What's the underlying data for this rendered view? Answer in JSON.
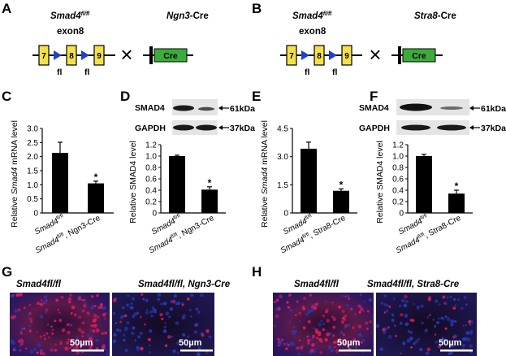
{
  "panel_labels": [
    "A",
    "B",
    "C",
    "D",
    "E",
    "F",
    "G",
    "H"
  ],
  "schematics": {
    "A": {
      "allele_main": "Smad4",
      "allele_sup": "fl/fl",
      "exon_label": "exon8",
      "exons": [
        "7",
        "8",
        "9"
      ],
      "loxp": [
        "fl",
        "fl"
      ],
      "cross": "×",
      "cre_gene": "Ngn3",
      "cre_suffix": "-Cre",
      "cre_box": "Cre"
    },
    "B": {
      "allele_main": "Smad4",
      "allele_sup": "fl/fl",
      "exon_label": "exon8",
      "exons": [
        "7",
        "8",
        "9"
      ],
      "loxp": [
        "fl",
        "fl"
      ],
      "cross": "×",
      "cre_gene": "Stra8",
      "cre_suffix": "-Cre",
      "cre_box": "Cre"
    }
  },
  "western": {
    "D": {
      "bands": [
        {
          "label": "SMAD4",
          "size": "61kDa"
        },
        {
          "label": "GAPDH",
          "size": "37kDa"
        }
      ]
    },
    "F": {
      "bands": [
        {
          "label": "SMAD4",
          "size": "61kDa"
        },
        {
          "label": "GAPDH",
          "size": "37kDa"
        }
      ]
    }
  },
  "sig_marker": "*",
  "images": {
    "G": {
      "titles": [
        "Smad4fl/fl",
        "Smad4fl/fl, Ngn3-Cre"
      ],
      "scalebar": "50µm"
    },
    "H": {
      "titles": [
        "Smad4fl/fl",
        "Smad4fl/fl, Stra8-Cre"
      ],
      "scalebar": "50µm"
    }
  },
  "colors": {
    "exon": "#f4e04d",
    "cre": "#3cab3c",
    "loxp": "#1f3fd8",
    "bar": "#000000",
    "fluor_red": "#d81c5c",
    "fluor_blue": "#2838b0"
  },
  "chart_data": [
    {
      "panel": "C",
      "type": "bar",
      "ylabel_pre": "Relative ",
      "ylabel_it": "Smad4",
      "ylabel_post": " mRNA level",
      "ylim": [
        0,
        3.0
      ],
      "ticks": [
        "0",
        "0.5",
        "1.0",
        "1.5",
        "2.0",
        "2.5",
        "3.0"
      ],
      "categories": [
        {
          "main": "Smad4",
          "sup": "fl/fl",
          "rest": ""
        },
        {
          "main": "Smad4",
          "sup": "fl/fl",
          "rest": ", Ngn3-Cre"
        }
      ],
      "values": [
        2.13,
        1.05
      ],
      "errors": [
        0.38,
        0.08
      ],
      "sig": [
        false,
        true
      ]
    },
    {
      "panel": "D",
      "type": "bar",
      "ylabel_pre": "Relative SMAD4 level",
      "ylabel_it": "",
      "ylabel_post": "",
      "ylim": [
        0,
        1.2
      ],
      "ticks": [
        "0",
        "0.2",
        "0.4",
        "0.6",
        "0.8",
        "1.0",
        "1.2"
      ],
      "categories": [
        {
          "main": "Smad4",
          "sup": "fl/fl",
          "rest": ""
        },
        {
          "main": "Smad4",
          "sup": "fl/fl",
          "rest": ", Ngn3-Cre"
        }
      ],
      "values": [
        1.0,
        0.41
      ],
      "errors": [
        0.015,
        0.05
      ],
      "sig": [
        false,
        true
      ]
    },
    {
      "panel": "E",
      "type": "bar",
      "ylabel_pre": "Relative ",
      "ylabel_it": "Smad4",
      "ylabel_post": " mRNA level",
      "ylim": [
        0,
        4.5
      ],
      "ticks": [
        "0",
        "1.5",
        "3.0",
        "4.5"
      ],
      "categories": [
        {
          "main": "Smad4",
          "sup": "fl/fl",
          "rest": ""
        },
        {
          "main": "Smad4",
          "sup": "fl/fl",
          "rest": ", Stra8-Cre"
        }
      ],
      "values": [
        3.42,
        1.18
      ],
      "errors": [
        0.35,
        0.1
      ],
      "sig": [
        false,
        true
      ]
    },
    {
      "panel": "F",
      "type": "bar",
      "ylabel_pre": "Relative SMAD4 level",
      "ylabel_it": "",
      "ylabel_post": "",
      "ylim": [
        0,
        1.2
      ],
      "ticks": [
        "0",
        "0.2",
        "0.4",
        "0.6",
        "0.8",
        "1.0",
        "1.2"
      ],
      "categories": [
        {
          "main": "Smad4",
          "sup": "fl/fl",
          "rest": ""
        },
        {
          "main": "Smad4",
          "sup": "fl/fl",
          "rest": ", Stra8-Cre"
        }
      ],
      "values": [
        1.0,
        0.34
      ],
      "errors": [
        0.03,
        0.06
      ],
      "sig": [
        false,
        true
      ]
    }
  ]
}
